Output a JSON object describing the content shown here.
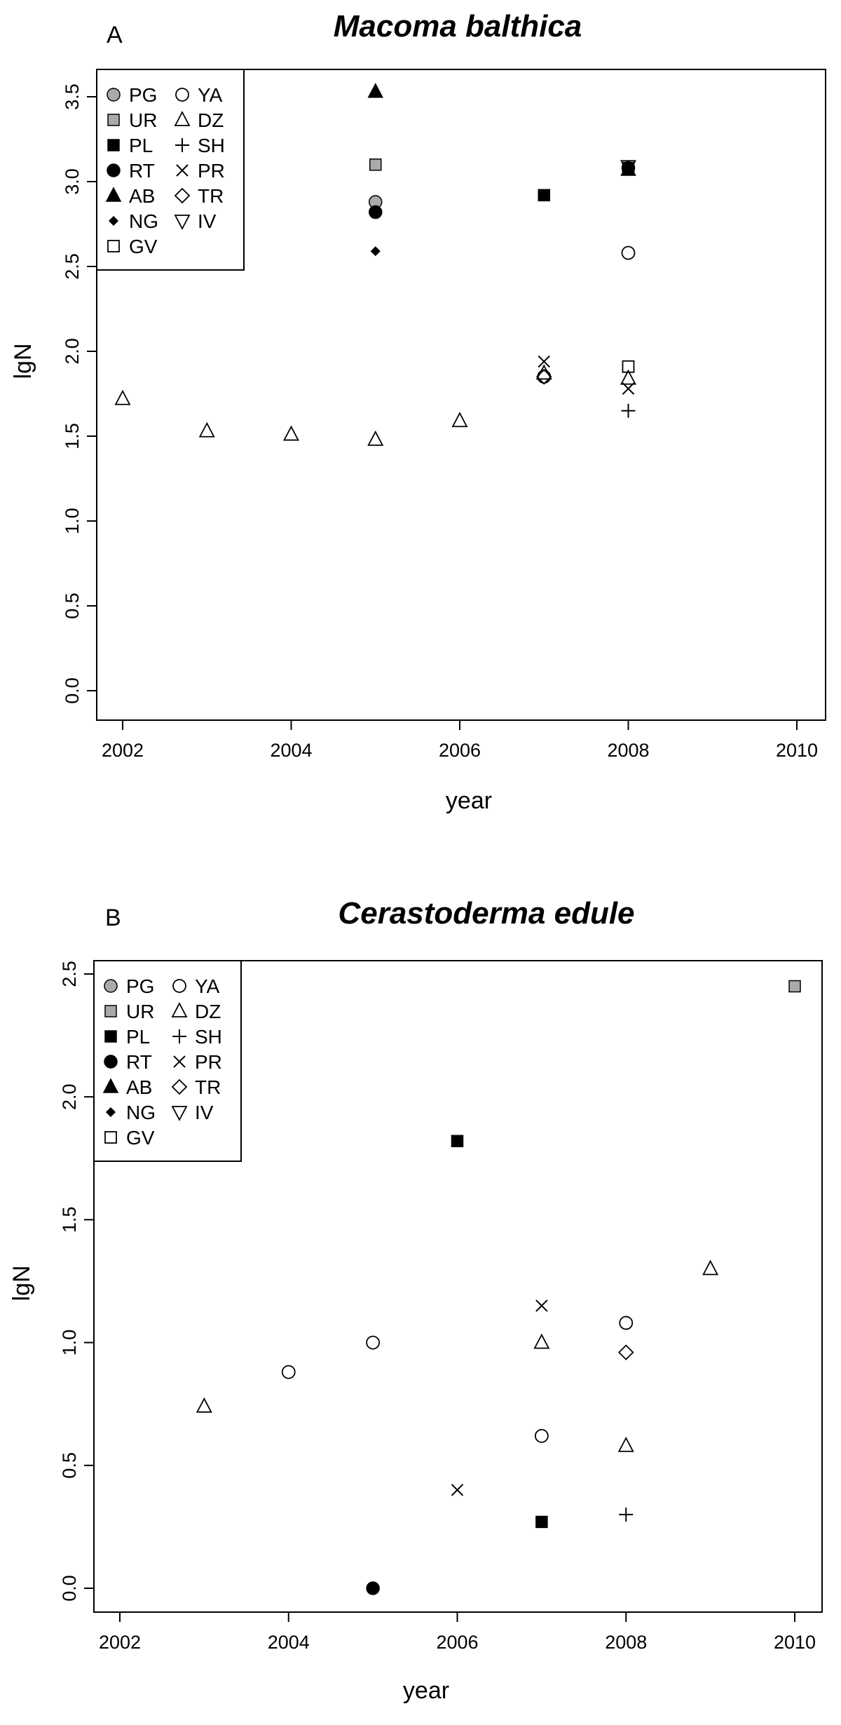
{
  "chart_data": [
    {
      "type": "scatter",
      "panel_label": "A",
      "title": "Macoma balthica",
      "xlabel": "year",
      "ylabel": "lgN",
      "xlim": [
        2002,
        2010
      ],
      "ylim": [
        0.0,
        3.5
      ],
      "x_ticks": [
        2002,
        2004,
        2006,
        2008,
        2010
      ],
      "y_ticks": [
        "0.0",
        "0.5",
        "1.0",
        "1.5",
        "2.0",
        "2.5",
        "3.0",
        "3.5"
      ],
      "grid": false,
      "legend_position": "top-left",
      "legend": [
        {
          "code": "PG",
          "marker": "circle-grey"
        },
        {
          "code": "UR",
          "marker": "square-grey"
        },
        {
          "code": "PL",
          "marker": "square-filled"
        },
        {
          "code": "RT",
          "marker": "circle-filled"
        },
        {
          "code": "AB",
          "marker": "triangle-up-filled"
        },
        {
          "code": "NG",
          "marker": "diamond-filled"
        },
        {
          "code": "GV",
          "marker": "square-open"
        },
        {
          "code": "YA",
          "marker": "circle-open"
        },
        {
          "code": "DZ",
          "marker": "triangle-up-open"
        },
        {
          "code": "SH",
          "marker": "plus"
        },
        {
          "code": "PR",
          "marker": "cross"
        },
        {
          "code": "TR",
          "marker": "diamond-open"
        },
        {
          "code": "IV",
          "marker": "triangle-down-open"
        }
      ],
      "series": [
        {
          "name": "PG",
          "points": [
            [
              2005,
              2.88
            ]
          ]
        },
        {
          "name": "UR",
          "points": [
            [
              2005,
              3.1
            ],
            [
              2008,
              3.08
            ]
          ]
        },
        {
          "name": "PL",
          "points": [
            [
              2007,
              2.92
            ],
            [
              2008,
              3.08
            ]
          ]
        },
        {
          "name": "RT",
          "points": [
            [
              2005,
              2.82
            ],
            [
              2008,
              3.08
            ]
          ]
        },
        {
          "name": "AB",
          "points": [
            [
              2005,
              3.53
            ],
            [
              2008,
              3.07
            ]
          ]
        },
        {
          "name": "NG",
          "points": [
            [
              2005,
              2.59
            ]
          ]
        },
        {
          "name": "GV",
          "points": [
            [
              2008,
              1.91
            ]
          ]
        },
        {
          "name": "YA",
          "points": [
            [
              2007,
              1.85
            ],
            [
              2008,
              2.58
            ]
          ]
        },
        {
          "name": "DZ",
          "points": [
            [
              2002,
              1.72
            ],
            [
              2003,
              1.53
            ],
            [
              2004,
              1.51
            ],
            [
              2005,
              1.48
            ],
            [
              2006,
              1.59
            ],
            [
              2007,
              1.87
            ],
            [
              2008,
              1.84
            ]
          ]
        },
        {
          "name": "SH",
          "points": [
            [
              2008,
              1.65
            ]
          ]
        },
        {
          "name": "PR",
          "points": [
            [
              2007,
              1.94
            ],
            [
              2008,
              1.78
            ]
          ]
        },
        {
          "name": "TR",
          "points": [
            [
              2007,
              1.85
            ]
          ]
        },
        {
          "name": "IV",
          "points": [
            [
              2008,
              3.09
            ]
          ]
        }
      ]
    },
    {
      "type": "scatter",
      "panel_label": "B",
      "title": "Cerastoderma edule",
      "xlabel": "year",
      "ylabel": "lgN",
      "xlim": [
        2002,
        2010
      ],
      "ylim": [
        0.0,
        2.5
      ],
      "x_ticks": [
        2002,
        2004,
        2006,
        2008,
        2010
      ],
      "y_ticks": [
        "0.0",
        "0.5",
        "1.0",
        "1.5",
        "2.0",
        "2.5"
      ],
      "grid": false,
      "legend_position": "top-left",
      "legend": [
        {
          "code": "PG",
          "marker": "circle-grey"
        },
        {
          "code": "UR",
          "marker": "square-grey"
        },
        {
          "code": "PL",
          "marker": "square-filled"
        },
        {
          "code": "RT",
          "marker": "circle-filled"
        },
        {
          "code": "AB",
          "marker": "triangle-up-filled"
        },
        {
          "code": "NG",
          "marker": "diamond-filled"
        },
        {
          "code": "GV",
          "marker": "square-open"
        },
        {
          "code": "YA",
          "marker": "circle-open"
        },
        {
          "code": "DZ",
          "marker": "triangle-up-open"
        },
        {
          "code": "SH",
          "marker": "plus"
        },
        {
          "code": "PR",
          "marker": "cross"
        },
        {
          "code": "TR",
          "marker": "diamond-open"
        },
        {
          "code": "IV",
          "marker": "triangle-down-open"
        }
      ],
      "series": [
        {
          "name": "UR",
          "points": [
            [
              2010,
              2.45
            ]
          ]
        },
        {
          "name": "PL",
          "points": [
            [
              2006,
              1.82
            ],
            [
              2007,
              0.27
            ]
          ]
        },
        {
          "name": "RT",
          "points": [
            [
              2005,
              0.0
            ]
          ]
        },
        {
          "name": "NG",
          "points": [
            [
              2005,
              0.0
            ]
          ]
        },
        {
          "name": "YA",
          "points": [
            [
              2004,
              0.88
            ],
            [
              2005,
              1.0
            ],
            [
              2007,
              0.62
            ],
            [
              2008,
              1.08
            ]
          ]
        },
        {
          "name": "DZ",
          "points": [
            [
              2003,
              0.74
            ],
            [
              2007,
              1.0
            ],
            [
              2008,
              0.58
            ],
            [
              2009,
              1.3
            ]
          ]
        },
        {
          "name": "SH",
          "points": [
            [
              2008,
              0.3
            ]
          ]
        },
        {
          "name": "PR",
          "points": [
            [
              2006,
              0.4
            ],
            [
              2007,
              1.15
            ]
          ]
        },
        {
          "name": "TR",
          "points": [
            [
              2008,
              0.96
            ]
          ]
        }
      ]
    }
  ]
}
